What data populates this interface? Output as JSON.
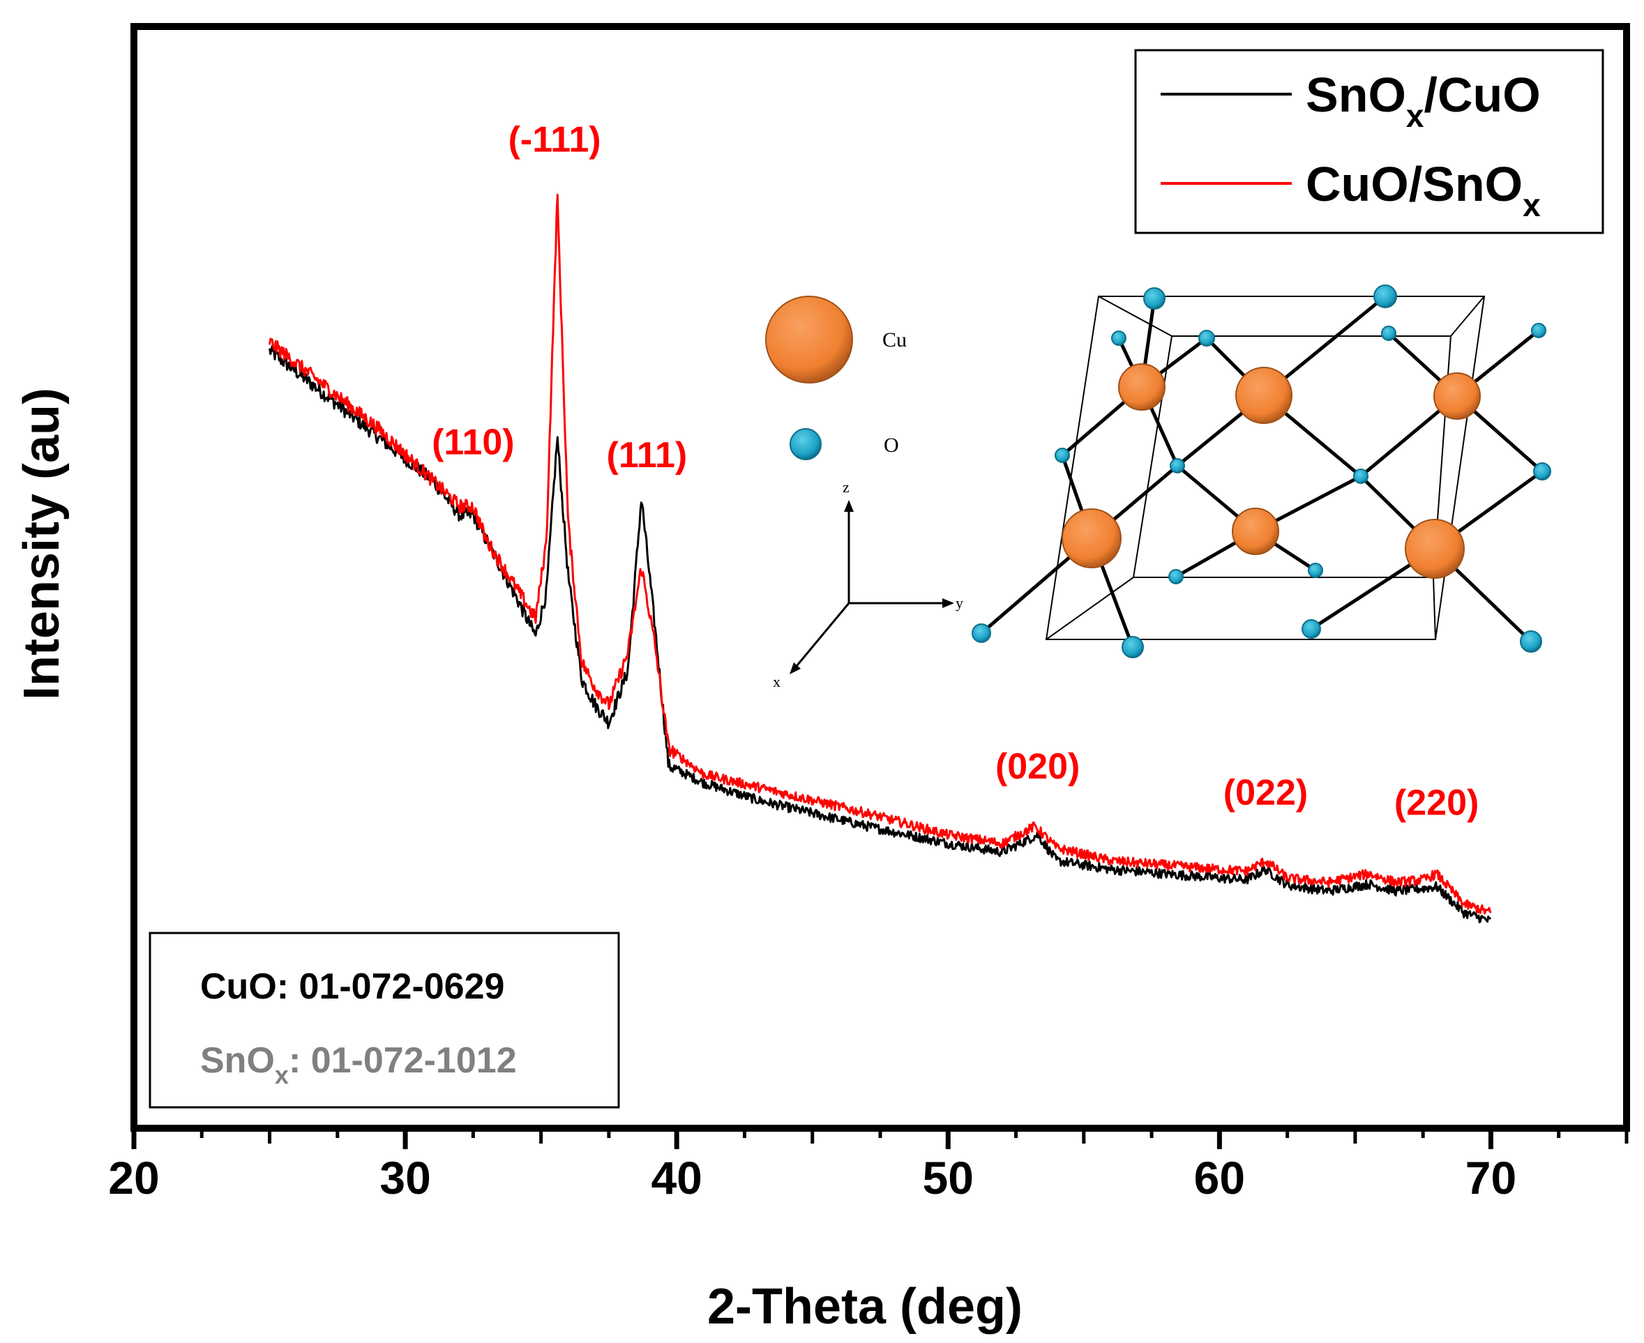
{
  "chart_data": {
    "type": "line",
    "xlabel": "2-Theta (deg)",
    "ylabel": "Intensity (au)",
    "xlim": [
      20,
      75
    ],
    "ylim": [
      0,
      100
    ],
    "x_ticks": [
      "20",
      "30",
      "40",
      "50",
      "60",
      "70"
    ],
    "x_tick_values": [
      20,
      30,
      40,
      50,
      60,
      70
    ],
    "legend_position": "top-right",
    "series": [
      {
        "name": "SnOx/CuO",
        "legend_main": "SnO",
        "legend_sub": "x",
        "legend_tail": "/CuO",
        "color": "#000000",
        "points": [
          [
            25,
            78
          ],
          [
            27,
            73
          ],
          [
            29,
            68
          ],
          [
            31,
            63
          ],
          [
            32,
            59
          ],
          [
            32.5,
            59
          ],
          [
            33,
            56
          ],
          [
            34,
            50
          ],
          [
            34.8,
            45
          ],
          [
            35.2,
            50
          ],
          [
            35.6,
            68
          ],
          [
            36,
            52
          ],
          [
            36.5,
            40
          ],
          [
            37,
            37
          ],
          [
            37.5,
            35
          ],
          [
            38.2,
            41
          ],
          [
            38.7,
            61
          ],
          [
            39.2,
            46
          ],
          [
            39.7,
            30
          ],
          [
            41,
            28
          ],
          [
            43,
            26
          ],
          [
            45,
            24.5
          ],
          [
            47,
            23
          ],
          [
            50,
            21
          ],
          [
            52,
            20
          ],
          [
            53.3,
            22
          ],
          [
            54,
            19
          ],
          [
            56,
            18
          ],
          [
            58,
            17.5
          ],
          [
            60,
            17
          ],
          [
            61,
            16.8
          ],
          [
            61.7,
            18
          ],
          [
            62.5,
            16.2
          ],
          [
            64,
            15.5
          ],
          [
            65.5,
            16.3
          ],
          [
            66.5,
            15.5
          ],
          [
            67.5,
            15.8
          ],
          [
            68,
            16
          ],
          [
            69,
            13
          ],
          [
            70,
            12
          ]
        ]
      },
      {
        "name": "CuO/SnOx",
        "legend_main": "CuO/SnO",
        "legend_sub": "x",
        "legend_tail": "",
        "color": "#ff0000",
        "points": [
          [
            25,
            79
          ],
          [
            27,
            74
          ],
          [
            29,
            69
          ],
          [
            31,
            63
          ],
          [
            32,
            60
          ],
          [
            32.5,
            60
          ],
          [
            33,
            56
          ],
          [
            34,
            51
          ],
          [
            34.8,
            47
          ],
          [
            35.2,
            56
          ],
          [
            35.6,
            96
          ],
          [
            36,
            58
          ],
          [
            36.5,
            42
          ],
          [
            37,
            39
          ],
          [
            37.5,
            37
          ],
          [
            38.2,
            43
          ],
          [
            38.7,
            53
          ],
          [
            39.2,
            44
          ],
          [
            39.7,
            32
          ],
          [
            41,
            29
          ],
          [
            43,
            27.5
          ],
          [
            45,
            26
          ],
          [
            47,
            24.5
          ],
          [
            50,
            22
          ],
          [
            52,
            21
          ],
          [
            53.2,
            23
          ],
          [
            54,
            20.5
          ],
          [
            56,
            19
          ],
          [
            58,
            18.5
          ],
          [
            60,
            18
          ],
          [
            61,
            17.8
          ],
          [
            61.7,
            19
          ],
          [
            62.5,
            17
          ],
          [
            64,
            16.5
          ],
          [
            65.5,
            17.5
          ],
          [
            66.5,
            16.5
          ],
          [
            67.5,
            16.8
          ],
          [
            68,
            17.5
          ],
          [
            69,
            14
          ],
          [
            70,
            13
          ]
        ]
      }
    ],
    "peak_labels": [
      {
        "text": "(110)",
        "x": 32.5,
        "y": 66
      },
      {
        "text": "(-111)",
        "x": 35.5,
        "y": 101
      },
      {
        "text": "(111)",
        "x": 38.9,
        "y": 64.5
      },
      {
        "text": "(020)",
        "x": 53.3,
        "y": 28.5
      },
      {
        "text": "(022)",
        "x": 61.7,
        "y": 25.5
      },
      {
        "text": "(220)",
        "x": 68.0,
        "y": 24.3
      }
    ]
  },
  "reference_box": {
    "cuo": "CuO: 01-072-0629",
    "snox_main": "SnO",
    "snox_sub": "x",
    "snox_tail": ": 01-072-1012",
    "cuo_color": "#000000",
    "snox_color": "#808080"
  },
  "inset": {
    "atom_cu_label": "Cu",
    "atom_o_label": "O",
    "axis_z": "z",
    "axis_y": "y",
    "axis_x": "x",
    "cu_color": "#f08030",
    "o_color": "#1ba0c4"
  }
}
